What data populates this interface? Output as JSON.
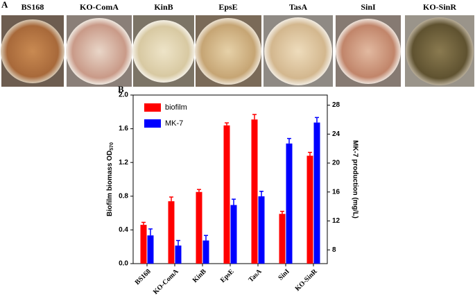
{
  "panel_a": {
    "label": "A",
    "samples": [
      "BS168",
      "KO-ComA",
      "KinB",
      "EpsE",
      "TasA",
      "SinI",
      "KO-SinR"
    ]
  },
  "chart_data": {
    "type": "bar",
    "panel_label": "B",
    "categories": [
      "BS168",
      "KO-ComA",
      "KinB",
      "EpsE",
      "TasA",
      "SinI",
      "KO-SinR"
    ],
    "ylabel": "Biofilm biomass OD",
    "ylabel_subscript": "570",
    "y2label": "MK-7 production (mg/L)",
    "ylim": [
      0,
      2.0
    ],
    "yticks": [
      {
        "value": 0,
        "label": "0.0"
      },
      {
        "value": 0.4,
        "label": "0.4"
      },
      {
        "value": 0.8,
        "label": "0.8"
      },
      {
        "value": 1.2,
        "label": "1.2"
      },
      {
        "value": 1.6,
        "label": "1.6"
      },
      {
        "value": 2.0,
        "label": "2.0"
      }
    ],
    "y2lim": [
      6.1,
      29.4
    ],
    "y2ticks": [
      8,
      12,
      16,
      20,
      24,
      28
    ],
    "legend": "upper-left",
    "series": [
      {
        "name": "biofilm",
        "color": "#ff0000",
        "values": [
          0.46,
          0.74,
          0.85,
          1.64,
          1.71,
          0.59,
          1.28
        ],
        "errors": [
          0.03,
          0.05,
          0.03,
          0.03,
          0.06,
          0.03,
          0.04
        ]
      },
      {
        "name": "MK-7",
        "color": "#0000ff",
        "axis": "y2",
        "values": [
          10.0,
          8.6,
          9.3,
          14.2,
          15.4,
          22.7,
          25.6
        ],
        "errors": [
          0.9,
          0.7,
          0.7,
          0.8,
          0.7,
          0.7,
          0.7
        ]
      }
    ]
  }
}
